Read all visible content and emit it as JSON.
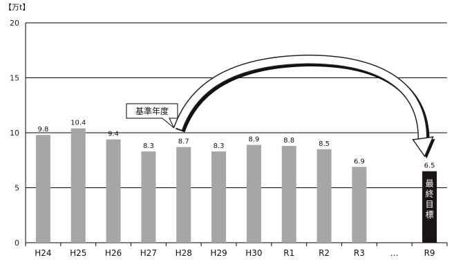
{
  "chart_data": {
    "type": "bar",
    "unit_label": "【万t】",
    "categories": [
      "H24",
      "H25",
      "H26",
      "H27",
      "H28",
      "H29",
      "H30",
      "R1",
      "R2",
      "R3",
      "…",
      "R9"
    ],
    "values": [
      9.8,
      10.4,
      9.4,
      8.3,
      8.7,
      8.3,
      8.9,
      8.8,
      8.5,
      6.9,
      null,
      6.5
    ],
    "value_labels": [
      "9.8",
      "10.4",
      "9.4",
      "8.3",
      "8.7",
      "8.3",
      "8.9",
      "8.8",
      "8.5",
      "6.9",
      "",
      "6.5"
    ],
    "yticks": [
      "0",
      "5",
      "10",
      "15",
      "20"
    ],
    "ylim": [
      0,
      20
    ],
    "grid": true,
    "colors": {
      "bar": "#a6a6a6",
      "target_bar": "#1a1414",
      "grid": "#000000"
    },
    "annotations": {
      "base_year_callout": "基準年度",
      "base_year_category": "H28",
      "target_category": "R9",
      "target_label": "最終目標"
    }
  }
}
